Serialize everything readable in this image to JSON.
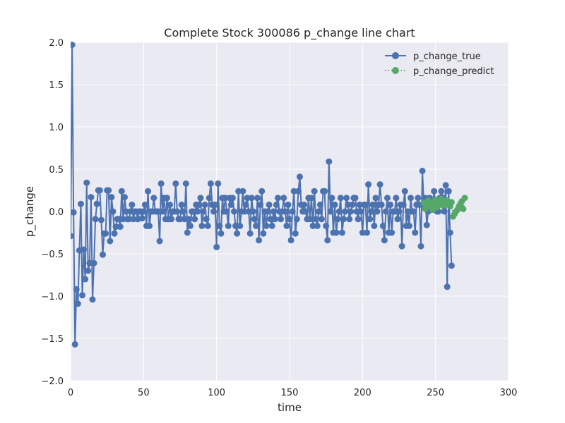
{
  "chart_data": {
    "type": "line",
    "title": "Complete Stock 300086 p_change line chart",
    "xlabel": "time",
    "ylabel": "p_change",
    "xlim": [
      0,
      300
    ],
    "ylim": [
      -2.0,
      2.0
    ],
    "xticks": [
      "0",
      "50",
      "100",
      "150",
      "200",
      "250",
      "300"
    ],
    "yticks": [
      "2.0",
      "1.5",
      "1.0",
      "0.5",
      "0.0",
      "−0.5",
      "−1.0",
      "−1.5",
      "−2.0"
    ],
    "grid": true,
    "legend_position": "top-right",
    "series": [
      {
        "name": "p_change_true",
        "color": "#4c72b0",
        "style": "solid-line-with-circles",
        "values": [
          -0.29,
          1.97,
          -0.01,
          -1.57,
          -0.92,
          -1.09,
          -0.46,
          0.09,
          -0.99,
          -0.45,
          -0.8,
          0.34,
          -0.7,
          -0.61,
          0.17,
          -1.04,
          -0.61,
          -0.09,
          0.09,
          0.25,
          0.25,
          -0.1,
          -0.51,
          -0.26,
          -0.26,
          0.25,
          0.25,
          -0.35,
          0.17,
          0.0,
          -0.26,
          -0.18,
          -0.09,
          -0.09,
          -0.18,
          0.24,
          -0.09,
          0.17,
          0.0,
          -0.09,
          -0.09,
          0.0,
          0.08,
          -0.09,
          0.0,
          0.0,
          -0.09,
          0.0,
          0.0,
          -0.08,
          0.0,
          0.08,
          -0.17,
          0.24,
          -0.17,
          0.0,
          0.0,
          0.16,
          0.0,
          0.0,
          0.0,
          -0.35,
          0.33,
          0.0,
          0.16,
          -0.09,
          0.16,
          -0.09,
          0.08,
          -0.09,
          0.0,
          0.0,
          0.33,
          0.0,
          -0.09,
          -0.09,
          0.08,
          0.0,
          -0.09,
          0.33,
          -0.25,
          -0.09,
          -0.17,
          0.0,
          0.0,
          -0.09,
          0.08,
          0.0,
          0.08,
          0.16,
          -0.17,
          0.0,
          0.08,
          -0.09,
          -0.17,
          0.16,
          0.33,
          0.08,
          0.0,
          0.08,
          -0.42,
          0.33,
          -0.17,
          -0.26,
          0.16,
          0.0,
          0.16,
          0.0,
          -0.17,
          0.16,
          0.08,
          0.16,
          0.0,
          -0.17,
          -0.26,
          0.24,
          -0.17,
          0.0,
          0.24,
          0.0,
          0.08,
          0.16,
          0.0,
          -0.26,
          0.16,
          0.0,
          -0.09,
          -0.17,
          0.16,
          -0.34,
          0.08,
          0.24,
          -0.26,
          0.0,
          -0.17,
          0.0,
          0.08,
          -0.09,
          -0.17,
          0.0,
          -0.09,
          0.08,
          0.16,
          0.0,
          -0.09,
          0.0,
          0.16,
          0.0,
          -0.17,
          0.08,
          -0.09,
          -0.34,
          0.0,
          0.24,
          -0.26,
          -0.09,
          0.24,
          0.41,
          0.08,
          0.0,
          0.08,
          0.0,
          -0.09,
          0.16,
          -0.09,
          0.16,
          -0.17,
          0.24,
          -0.09,
          -0.17,
          0.0,
          0.08,
          -0.09,
          0.24,
          0.24,
          -0.17,
          -0.34,
          0.59,
          0.0,
          0.16,
          -0.25,
          0.08,
          -0.25,
          -0.09,
          0.0,
          0.16,
          -0.25,
          -0.09,
          0.0,
          0.16,
          0.08,
          -0.09,
          0.0,
          0.08,
          0.16,
          0.16,
          0.0,
          -0.09,
          0.08,
          0.0,
          -0.25,
          0.08,
          0.08,
          -0.25,
          0.32,
          -0.09,
          0.0,
          0.08,
          -0.17,
          0.16,
          0.0,
          0.08,
          0.32,
          0.08,
          -0.17,
          -0.34,
          0.0,
          0.16,
          -0.25,
          0.08,
          -0.25,
          0.0,
          0.0,
          0.16,
          -0.09,
          0.0,
          0.08,
          -0.41,
          0.08,
          0.24,
          -0.17,
          0.0,
          -0.17,
          0.16,
          0.0,
          0.0,
          -0.25,
          0.08,
          0.16,
          0.08,
          -0.41,
          0.48,
          0.08,
          0.16,
          -0.16,
          0.0,
          0.16,
          0.08,
          0.08,
          0.24,
          0.08,
          0.0,
          0.0,
          0.16,
          0.24,
          0.16,
          0.0,
          0.31,
          -0.89,
          0.24,
          -0.25,
          -0.64
        ]
      },
      {
        "name": "p_change_predict",
        "color": "#55a868",
        "style": "dotted-line-with-circles",
        "x_start": 242,
        "values": [
          0.1,
          0.03,
          0.06,
          0.13,
          0.07,
          0.1,
          0.02,
          0.08,
          0.14,
          0.05,
          0.12,
          0.09,
          0.15,
          0.07,
          0.12,
          0.08,
          0.13,
          0.1,
          0.06,
          0.11,
          -0.06,
          -0.03,
          0.0,
          0.02,
          0.06,
          0.09,
          0.12,
          0.03,
          0.16
        ]
      }
    ]
  }
}
